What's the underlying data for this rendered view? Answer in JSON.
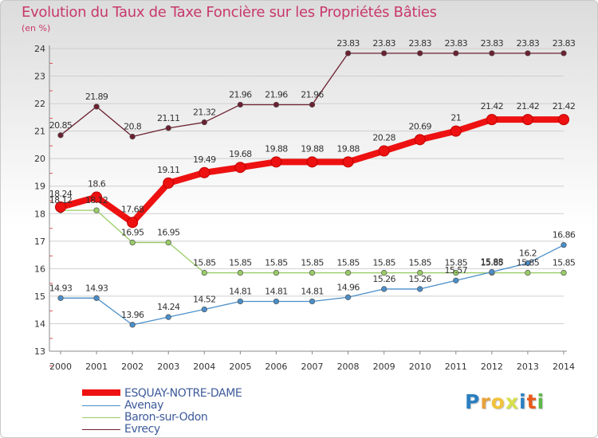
{
  "chart_data": {
    "type": "line",
    "title": "Evolution du Taux de Taxe Foncière sur les Propriétés Bâties",
    "ylabel": "(en %)",
    "xlabel": "",
    "ylim": [
      13,
      24
    ],
    "yticks": [
      "13",
      "14",
      "15",
      "16",
      "17",
      "18",
      "19",
      "20",
      "21",
      "22",
      "23",
      "24"
    ],
    "categories": [
      "2000",
      "2001",
      "2002",
      "2003",
      "2004",
      "2005",
      "2006",
      "2007",
      "2008",
      "2009",
      "2010",
      "2011",
      "2012",
      "2013",
      "2014"
    ],
    "series": [
      {
        "name": "Evrecy",
        "color": "#6b2030",
        "values": [
          20.85,
          21.89,
          20.8,
          21.11,
          21.32,
          21.96,
          21.96,
          21.96,
          23.83,
          23.83,
          23.83,
          23.83,
          23.83,
          23.83,
          23.83
        ],
        "labels": [
          "20.85",
          "21.89",
          "20.8",
          "21.11",
          "21.32",
          "21.96",
          "21.96",
          "21.96",
          "23.83",
          "23.83",
          "23.83",
          "23.83",
          "23.83",
          "23.83",
          "23.83"
        ]
      },
      {
        "name": "Baron-sur-Odon",
        "color": "#99cc66",
        "values": [
          18.12,
          18.12,
          16.95,
          16.95,
          15.85,
          15.85,
          15.85,
          15.85,
          15.85,
          15.85,
          15.85,
          15.85,
          15.85,
          15.85,
          15.85
        ],
        "labels": [
          "18.12",
          "18.12",
          "16.95",
          "16.95",
          "15.85",
          "15.85",
          "15.85",
          "15.85",
          "15.85",
          "15.85",
          "15.85",
          "15.85",
          "15.85",
          "15.85",
          "15.85"
        ]
      },
      {
        "name": "Avenay",
        "color": "#4a8ec9",
        "values": [
          14.93,
          14.93,
          13.96,
          14.24,
          14.52,
          14.81,
          14.81,
          14.81,
          14.96,
          15.26,
          15.26,
          15.57,
          15.88,
          16.2,
          16.86
        ],
        "labels": [
          "14.93",
          "14.93",
          "13.96",
          "14.24",
          "14.52",
          "14.81",
          "14.81",
          "14.81",
          "14.96",
          "15.26",
          "15.26",
          "15.57",
          "15.88",
          "16.2",
          "16.86"
        ]
      },
      {
        "name": "ESQUAY-NOTRE-DAME",
        "color": "#ee1111",
        "values": [
          18.24,
          18.6,
          17.68,
          19.11,
          19.49,
          19.68,
          19.88,
          19.88,
          19.88,
          20.28,
          20.69,
          21,
          21.42,
          21.42,
          21.42
        ],
        "labels": [
          "18.24",
          "18.6",
          "17.68",
          "19.11",
          "19.49",
          "19.68",
          "19.88",
          "19.88",
          "19.88",
          "20.28",
          "20.69",
          "21",
          "21.42",
          "21.42",
          "21.42"
        ]
      }
    ],
    "legend": [
      "ESQUAY-NOTRE-DAME",
      "Avenay",
      "Baron-sur-Odon",
      "Evrecy"
    ],
    "legend_position": "bottom-left"
  },
  "branding": {
    "logo_letters": [
      "P",
      "r",
      "o",
      "x",
      "i",
      "t",
      "i"
    ],
    "logo_colors": [
      "#2a7fc1",
      "#e8a23a",
      "#f2c23a",
      "#d6e04a",
      "#2a7fc1",
      "#e85a1a",
      "#5cb848"
    ]
  }
}
